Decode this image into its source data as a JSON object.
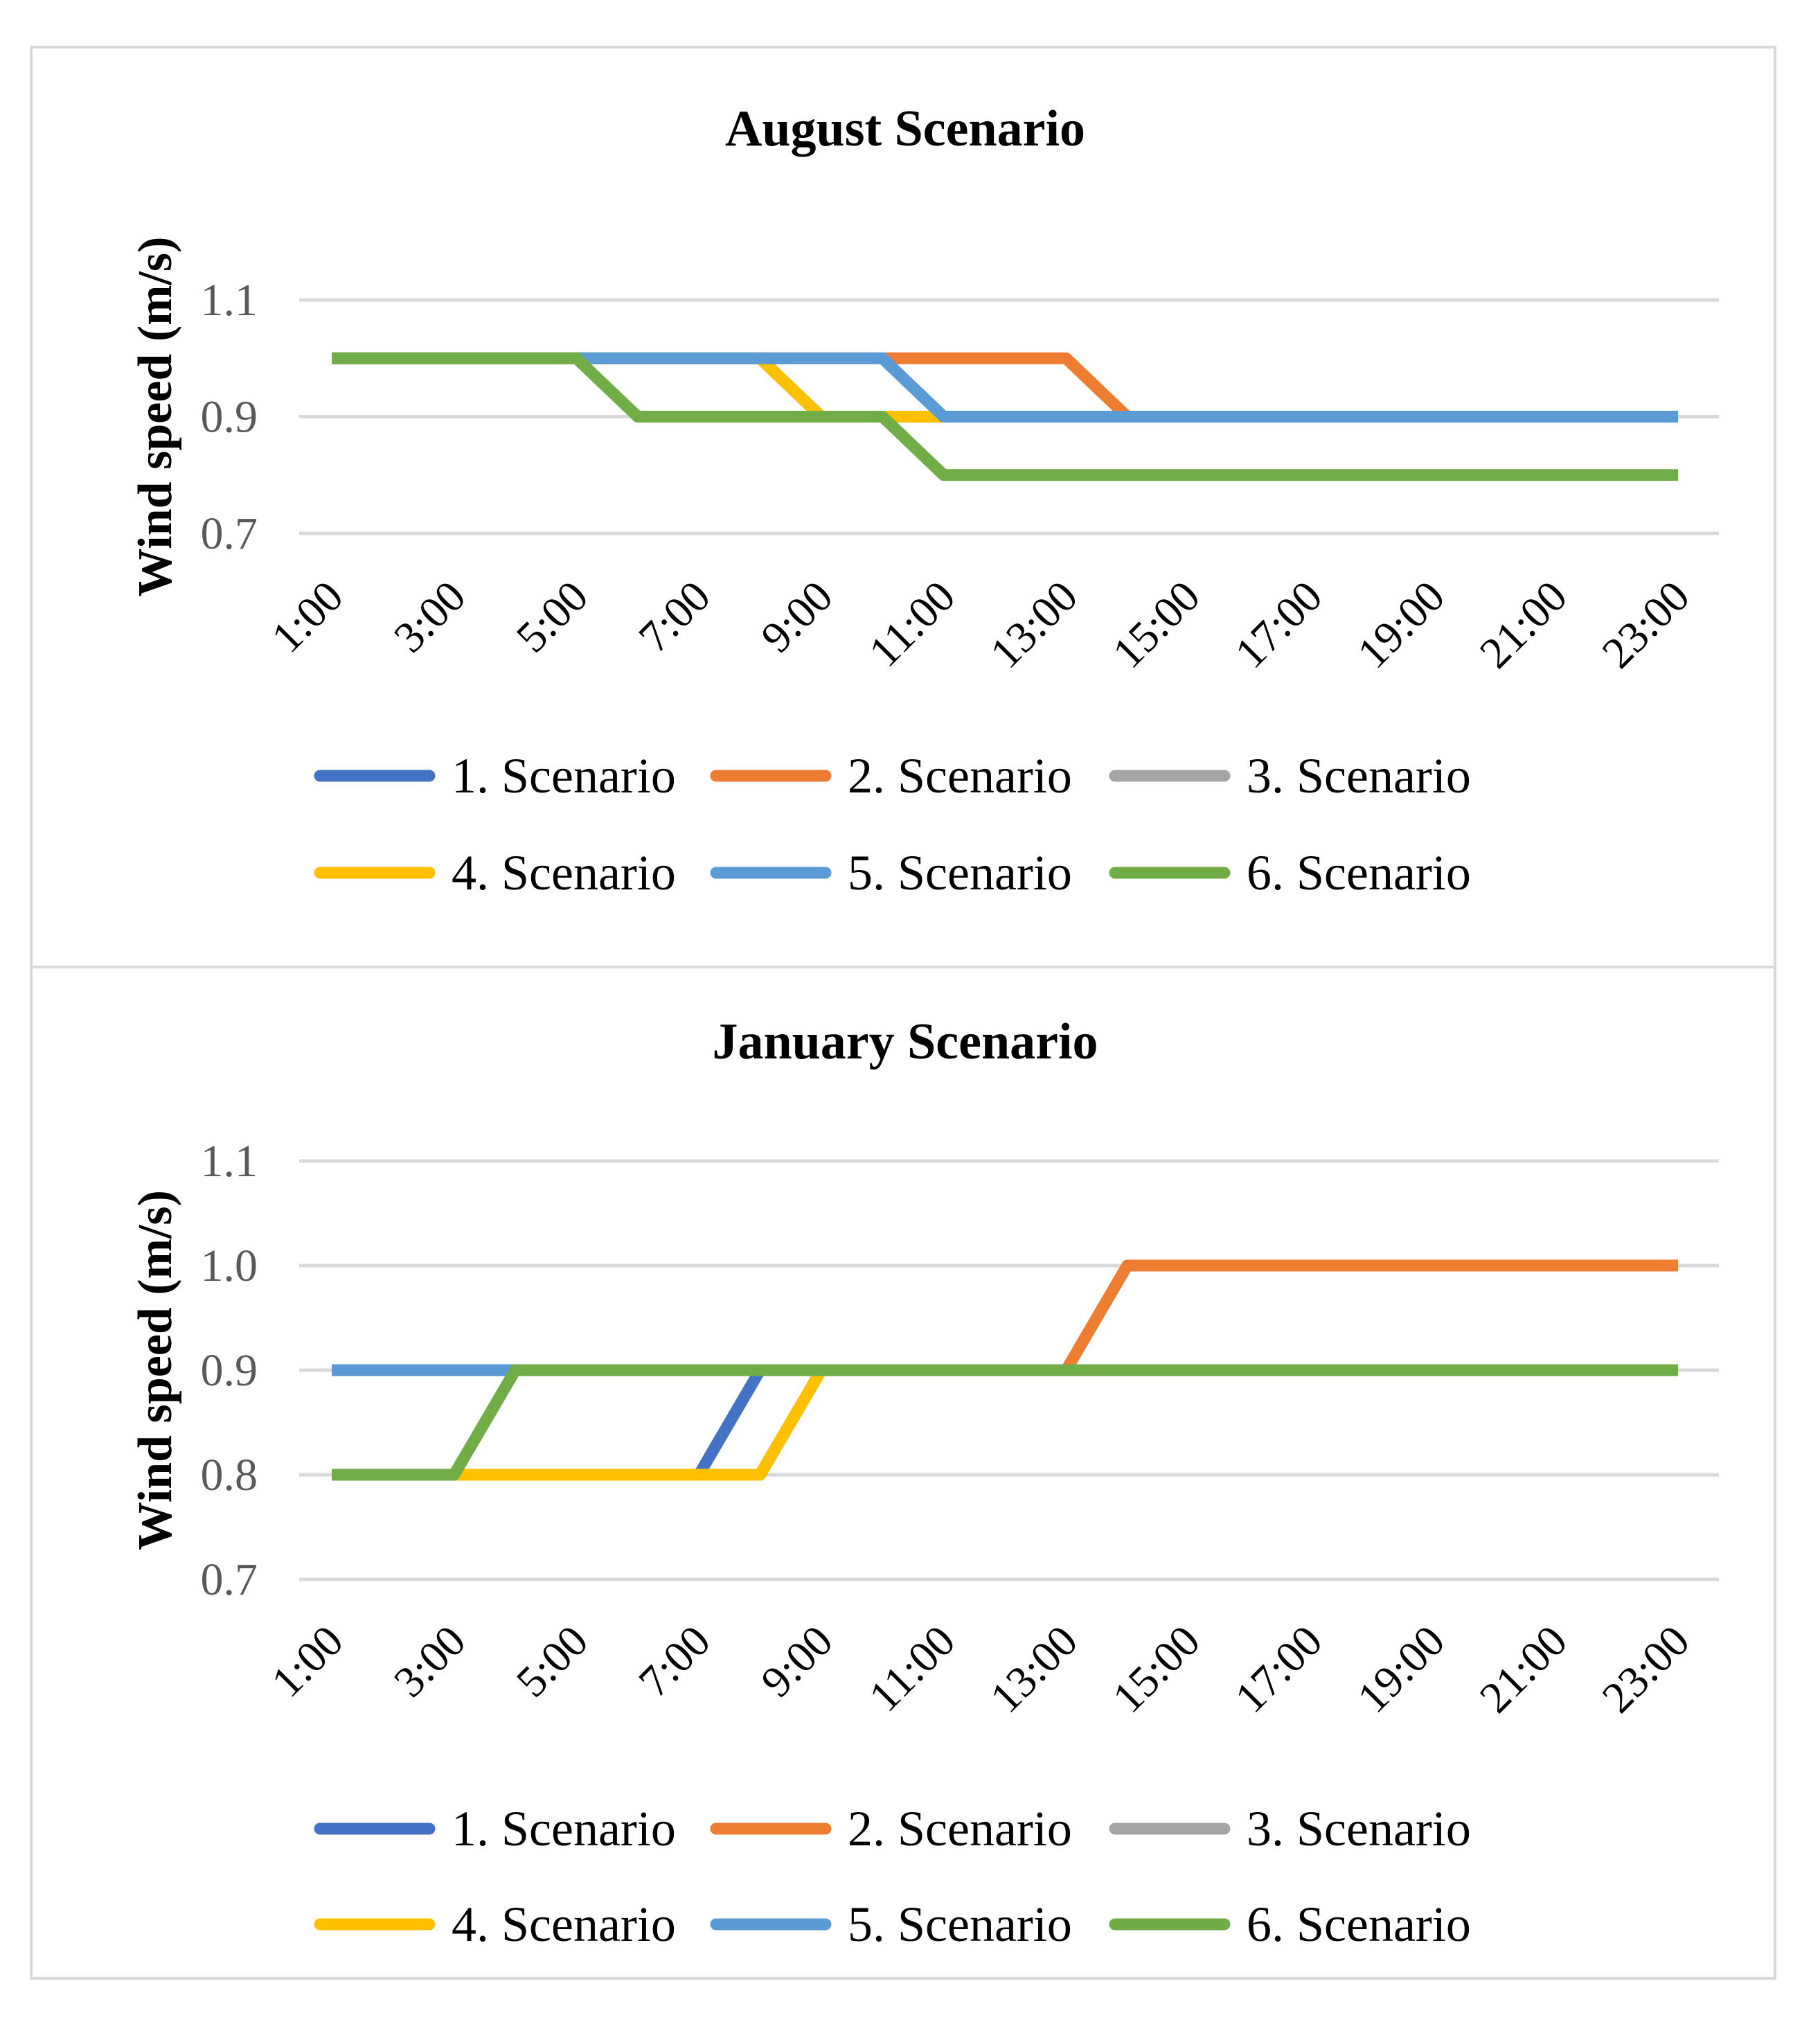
{
  "chart_data": [
    {
      "type": "line",
      "title": "August Scenario",
      "xlabel": "",
      "ylabel": "Wind speed (m/s)",
      "ylim": [
        0.7,
        1.1
      ],
      "yticks": [
        "0.7",
        "0.9",
        "1.1"
      ],
      "ytick_values": [
        0.7,
        0.9,
        1.1
      ],
      "x": [
        "1:00",
        "2:00",
        "3:00",
        "4:00",
        "5:00",
        "6:00",
        "7:00",
        "8:00",
        "9:00",
        "10:00",
        "11:00",
        "12:00",
        "13:00",
        "14:00",
        "15:00",
        "16:00",
        "17:00",
        "18:00",
        "19:00",
        "20:00",
        "21:00",
        "22:00",
        "23:00"
      ],
      "xtick_labels": [
        "1:00",
        "3:00",
        "5:00",
        "7:00",
        "9:00",
        "11:00",
        "13:00",
        "15:00",
        "17:00",
        "19:00",
        "21:00",
        "23:00"
      ],
      "series": [
        {
          "name": "1. Scenario",
          "color": "#4472C4",
          "values": [
            1.0,
            1.0,
            1.0,
            1.0,
            1.0,
            1.0,
            1.0,
            1.0,
            0.9,
            0.9,
            0.9,
            0.9,
            0.9,
            0.9,
            0.9,
            0.9,
            0.9,
            0.9,
            0.9,
            0.9,
            0.9,
            0.9,
            0.9
          ]
        },
        {
          "name": "2. Scenario",
          "color": "#ED7D31",
          "values": [
            1.0,
            1.0,
            1.0,
            1.0,
            1.0,
            1.0,
            1.0,
            1.0,
            1.0,
            1.0,
            1.0,
            1.0,
            1.0,
            0.9,
            0.9,
            0.9,
            0.9,
            0.9,
            0.9,
            0.9,
            0.9,
            0.9,
            0.9
          ]
        },
        {
          "name": "3. Scenario",
          "color": "#A5A5A5",
          "values": [
            1.0,
            1.0,
            1.0,
            1.0,
            1.0,
            1.0,
            1.0,
            1.0,
            0.9,
            0.9,
            0.9,
            0.9,
            0.9,
            0.9,
            0.9,
            0.9,
            0.9,
            0.9,
            0.9,
            0.9,
            0.9,
            0.9,
            0.9
          ]
        },
        {
          "name": "4. Scenario",
          "color": "#FFC000",
          "values": [
            1.0,
            1.0,
            1.0,
            1.0,
            1.0,
            1.0,
            1.0,
            1.0,
            0.9,
            0.9,
            0.9,
            0.9,
            0.9,
            0.9,
            0.9,
            0.9,
            0.9,
            0.9,
            0.9,
            0.9,
            0.9,
            0.9,
            0.9
          ]
        },
        {
          "name": "5. Scenario",
          "color": "#5B9BD5",
          "values": [
            1.0,
            1.0,
            1.0,
            1.0,
            1.0,
            1.0,
            1.0,
            1.0,
            1.0,
            1.0,
            0.9,
            0.9,
            0.9,
            0.9,
            0.9,
            0.9,
            0.9,
            0.9,
            0.9,
            0.9,
            0.9,
            0.9,
            0.9
          ]
        },
        {
          "name": "6. Scenario",
          "color": "#70AD47",
          "values": [
            1.0,
            1.0,
            1.0,
            1.0,
            1.0,
            0.9,
            0.9,
            0.9,
            0.9,
            0.9,
            0.8,
            0.8,
            0.8,
            0.8,
            0.8,
            0.8,
            0.8,
            0.8,
            0.8,
            0.8,
            0.8,
            0.8,
            0.8
          ]
        }
      ]
    },
    {
      "type": "line",
      "title": "January Scenario",
      "xlabel": "",
      "ylabel": "Wind speed (m/s)",
      "ylim": [
        0.7,
        1.1
      ],
      "yticks": [
        "0.7",
        "0.8",
        "0.9",
        "1.0",
        "1.1"
      ],
      "ytick_values": [
        0.7,
        0.8,
        0.9,
        1.0,
        1.1
      ],
      "x": [
        "1:00",
        "2:00",
        "3:00",
        "4:00",
        "5:00",
        "6:00",
        "7:00",
        "8:00",
        "9:00",
        "10:00",
        "11:00",
        "12:00",
        "13:00",
        "14:00",
        "15:00",
        "16:00",
        "17:00",
        "18:00",
        "19:00",
        "20:00",
        "21:00",
        "22:00",
        "23:00"
      ],
      "xtick_labels": [
        "1:00",
        "3:00",
        "5:00",
        "7:00",
        "9:00",
        "11:00",
        "13:00",
        "15:00",
        "17:00",
        "19:00",
        "21:00",
        "23:00"
      ],
      "series": [
        {
          "name": "1. Scenario",
          "color": "#4472C4",
          "values": [
            0.8,
            0.8,
            0.8,
            0.8,
            0.8,
            0.8,
            0.8,
            0.9,
            0.9,
            0.9,
            0.9,
            0.9,
            0.9,
            0.9,
            0.9,
            0.9,
            0.9,
            0.9,
            0.9,
            0.9,
            0.9,
            0.9,
            0.9
          ]
        },
        {
          "name": "2. Scenario",
          "color": "#ED7D31",
          "values": [
            0.8,
            0.8,
            0.8,
            0.8,
            0.8,
            0.8,
            0.8,
            0.8,
            0.9,
            0.9,
            0.9,
            0.9,
            0.9,
            1.0,
            1.0,
            1.0,
            1.0,
            1.0,
            1.0,
            1.0,
            1.0,
            1.0,
            1.0
          ]
        },
        {
          "name": "3. Scenario",
          "color": "#A5A5A5",
          "values": [
            0.8,
            0.8,
            0.8,
            0.8,
            0.8,
            0.8,
            0.8,
            0.8,
            0.9,
            0.9,
            0.9,
            0.9,
            0.9,
            0.9,
            0.9,
            0.9,
            0.9,
            0.9,
            0.9,
            0.9,
            0.9,
            0.9,
            0.9
          ]
        },
        {
          "name": "4. Scenario",
          "color": "#FFC000",
          "values": [
            0.8,
            0.8,
            0.8,
            0.8,
            0.8,
            0.8,
            0.8,
            0.8,
            0.9,
            0.9,
            0.9,
            0.9,
            0.9,
            0.9,
            0.9,
            0.9,
            0.9,
            0.9,
            0.9,
            0.9,
            0.9,
            0.9,
            0.9
          ]
        },
        {
          "name": "5. Scenario",
          "color": "#5B9BD5",
          "values": [
            0.9,
            0.9,
            0.9,
            0.9,
            0.9,
            0.9,
            0.9,
            0.9,
            0.9,
            0.9,
            0.9,
            0.9,
            0.9,
            0.9,
            0.9,
            0.9,
            0.9,
            0.9,
            0.9,
            0.9,
            0.9,
            0.9,
            0.9
          ]
        },
        {
          "name": "6. Scenario",
          "color": "#70AD47",
          "values": [
            0.8,
            0.8,
            0.8,
            0.9,
            0.9,
            0.9,
            0.9,
            0.9,
            0.9,
            0.9,
            0.9,
            0.9,
            0.9,
            0.9,
            0.9,
            0.9,
            0.9,
            0.9,
            0.9,
            0.9,
            0.9,
            0.9,
            0.9
          ]
        }
      ]
    }
  ]
}
